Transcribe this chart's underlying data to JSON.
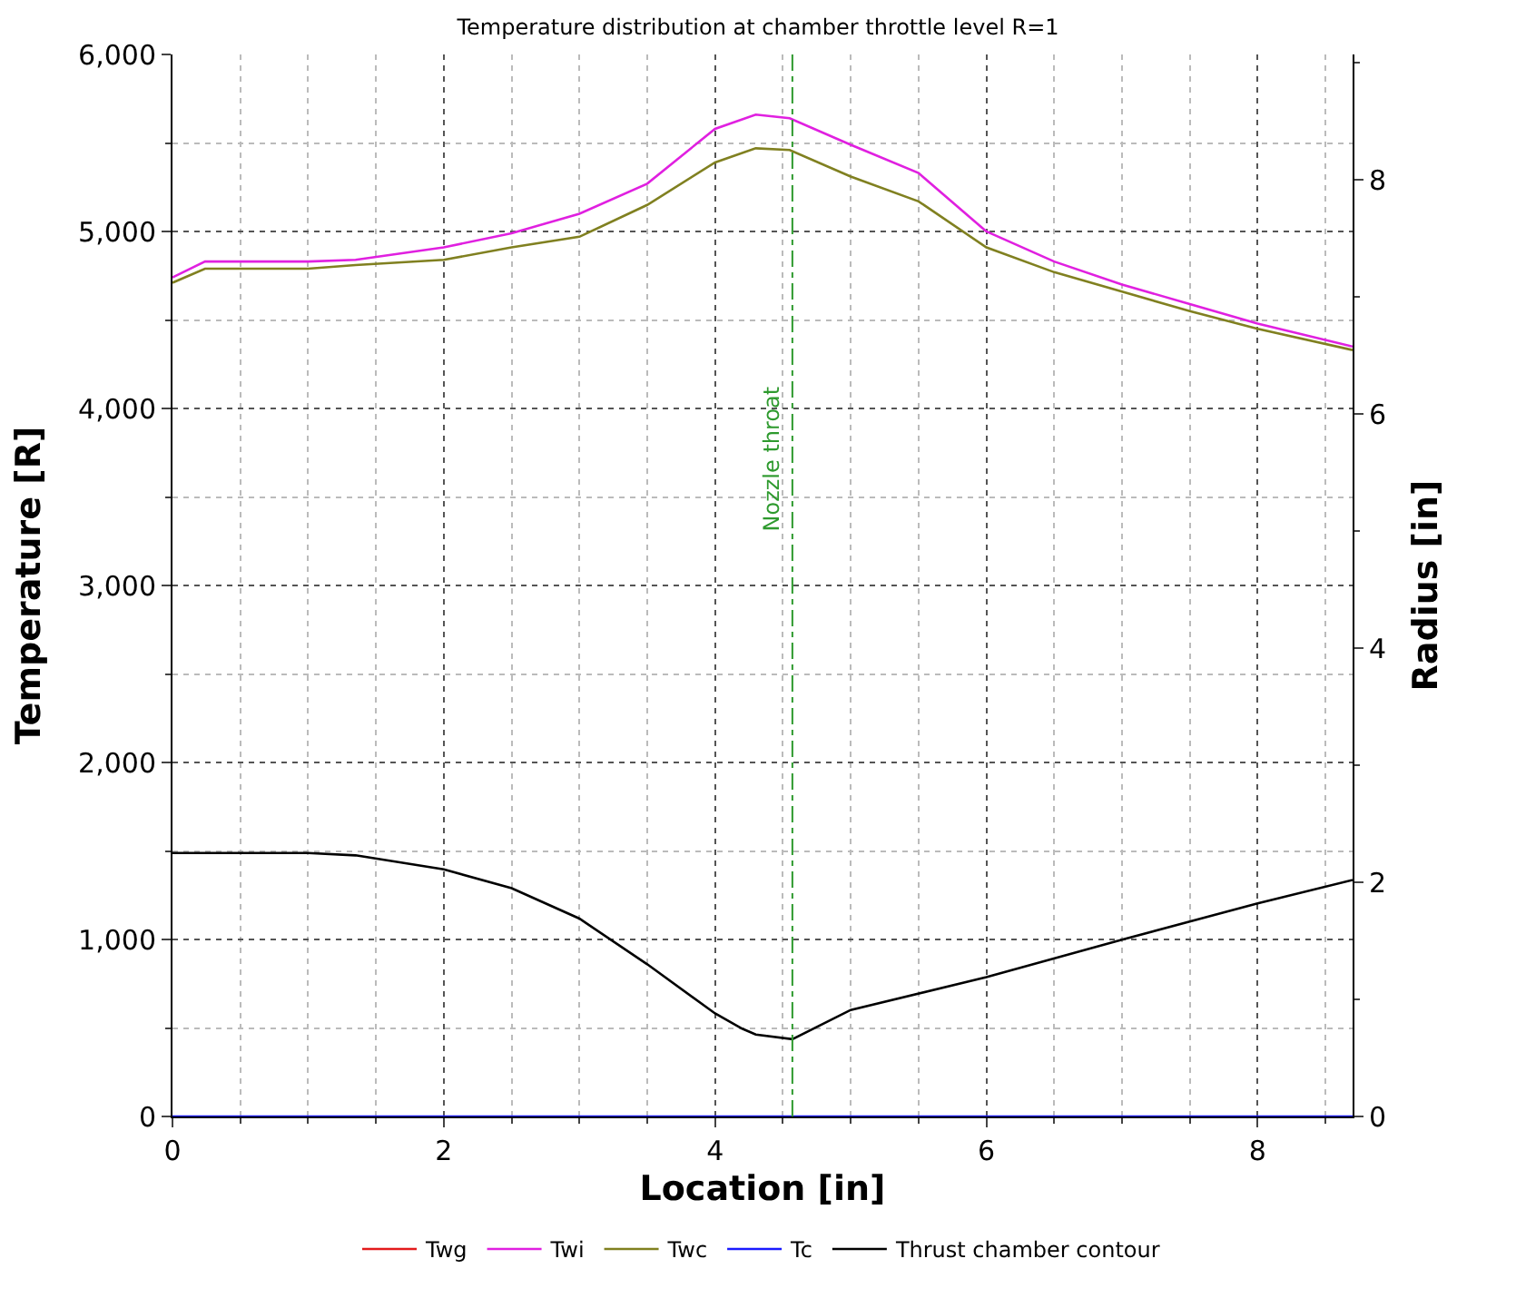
{
  "chart_data": {
    "type": "line",
    "title": "Temperature distribution at chamber throttle level R=1",
    "xlabel": "Location [in]",
    "ylabel": "Temperature [R]",
    "y2label": "Radius [in]",
    "xlim": [
      0,
      8.7
    ],
    "xticks": [
      0,
      2,
      4,
      6,
      8
    ],
    "ylim": [
      0,
      6000
    ],
    "yticks": [
      {
        "value": 0,
        "label": "0"
      },
      {
        "value": 1000,
        "label": "1,000"
      },
      {
        "value": 2000,
        "label": "2,000"
      },
      {
        "value": 3000,
        "label": "3,000"
      },
      {
        "value": 4000,
        "label": "4,000"
      },
      {
        "value": 5000,
        "label": "5,000"
      },
      {
        "value": 6000,
        "label": "6,000"
      }
    ],
    "y2lim": [
      0,
      9.07
    ],
    "y2ticks": [
      0,
      2,
      4,
      6,
      8
    ],
    "grid": true,
    "legend": "bottom",
    "marker": "none",
    "line_style": "solid",
    "ref_lines": [
      {
        "axis": "x",
        "value": 4.57,
        "label": "Nozzle throat",
        "color": "#2e9a2e",
        "line_style": "dashdot"
      }
    ],
    "series": [
      {
        "name": "Twg",
        "color": "#e31a1c",
        "values": [
          null
        ]
      },
      {
        "name": "Twi",
        "color": "#e020e0",
        "x": [
          0,
          0.24,
          1.0,
          1.35,
          2,
          2.5,
          3,
          3.5,
          4,
          4.3,
          4.55,
          5,
          5.5,
          6,
          6.5,
          7,
          7.5,
          8,
          8.7
        ],
        "values": [
          4740,
          4830,
          4830,
          4840,
          4910,
          4990,
          5100,
          5270,
          5580,
          5660,
          5640,
          5490,
          5330,
          5000,
          4830,
          4700,
          4590,
          4480,
          4350
        ]
      },
      {
        "name": "Twc",
        "color": "#808020",
        "x": [
          0,
          0.24,
          1.0,
          1.35,
          2,
          2.5,
          3,
          3.5,
          4,
          4.3,
          4.55,
          5,
          5.5,
          6,
          6.5,
          7,
          7.5,
          8,
          8.7
        ],
        "values": [
          4710,
          4790,
          4790,
          4810,
          4840,
          4910,
          4970,
          5150,
          5390,
          5470,
          5460,
          5310,
          5170,
          4910,
          4770,
          4660,
          4550,
          4450,
          4330
        ]
      },
      {
        "name": "Tc",
        "color": "#1a1aff",
        "x": [
          0,
          8.7
        ],
        "values": [
          0,
          0
        ]
      },
      {
        "name": "Thrust chamber contour",
        "color": "#000000",
        "axis": "y2",
        "x": [
          0,
          1,
          1.35,
          2,
          2.5,
          3,
          3.5,
          4,
          4.2,
          4.3,
          4.57,
          5,
          6,
          7,
          8,
          8.7
        ],
        "values": [
          2.25,
          2.25,
          2.23,
          2.11,
          1.95,
          1.69,
          1.3,
          0.88,
          0.75,
          0.7,
          0.66,
          0.91,
          1.19,
          1.51,
          1.82,
          2.02
        ]
      }
    ]
  }
}
